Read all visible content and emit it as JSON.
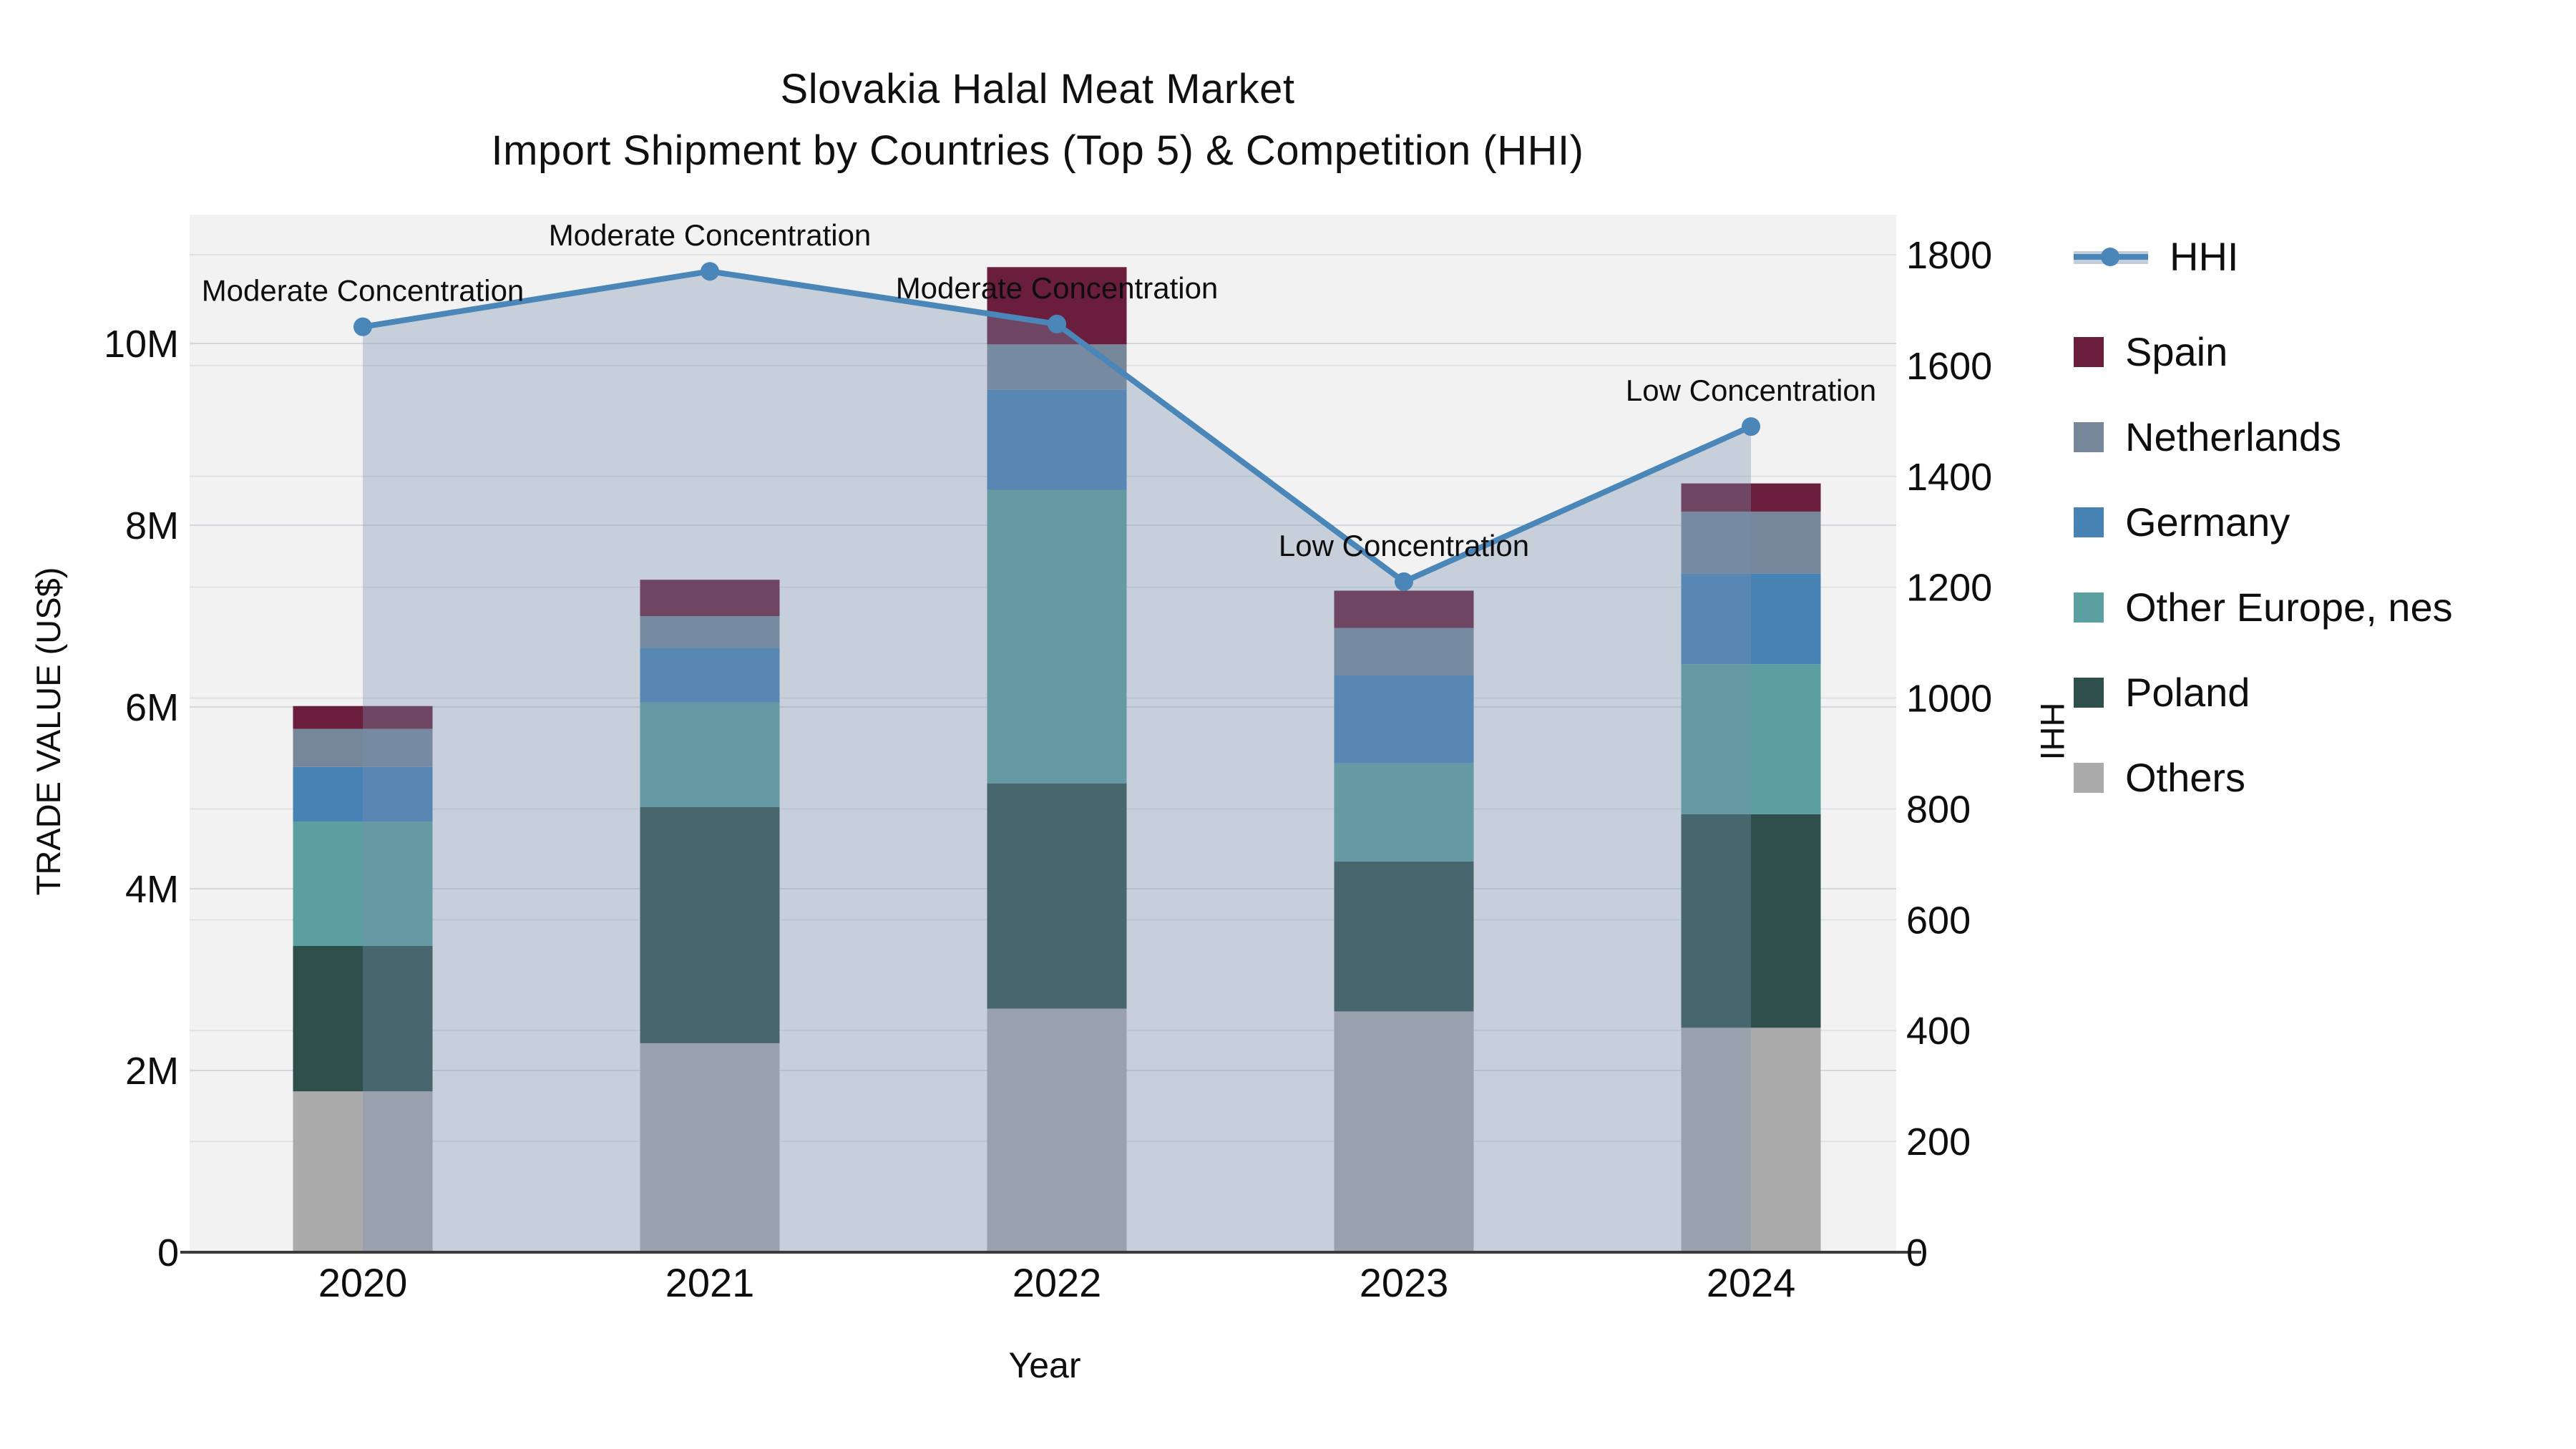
{
  "title": {
    "line1": "Slovakia Halal Meat Market",
    "line2": "Import Shipment by Countries (Top 5) & Competition (HHI)"
  },
  "axes": {
    "x": {
      "title": "Year"
    },
    "left": {
      "title": "TRADE VALUE (US$)",
      "ticks": [
        {
          "value": 0,
          "label": "0"
        },
        {
          "value": 2,
          "label": "2M"
        },
        {
          "value": 4,
          "label": "4M"
        },
        {
          "value": 6,
          "label": "6M"
        },
        {
          "value": 8,
          "label": "8M"
        },
        {
          "value": 10,
          "label": "10M"
        }
      ]
    },
    "right": {
      "title": "HHI",
      "ticks": [
        {
          "value": 0,
          "label": "0"
        },
        {
          "value": 200,
          "label": "200"
        },
        {
          "value": 400,
          "label": "400"
        },
        {
          "value": 600,
          "label": "600"
        },
        {
          "value": 800,
          "label": "800"
        },
        {
          "value": 1000,
          "label": "1000"
        },
        {
          "value": 1200,
          "label": "1200"
        },
        {
          "value": 1400,
          "label": "1400"
        },
        {
          "value": 1600,
          "label": "1600"
        },
        {
          "value": 1800,
          "label": "1800"
        }
      ]
    }
  },
  "chart_data": {
    "type": "bar",
    "subtype": "stacked-bars-with-line-overlay",
    "title": "Slovakia Halal Meat Market Import Shipment by Countries (Top 5) & Competition (HHI)",
    "xlabel": "Year",
    "ylabel_left": "TRADE VALUE (US$)",
    "ylabel_right": "HHI",
    "categories": [
      "2020",
      "2021",
      "2022",
      "2023",
      "2024"
    ],
    "unit": "US$ millions",
    "plot_bg": "#f2f2f2",
    "grid": true,
    "legend_position": "right",
    "y_left_range_musd": [
      0,
      11.4
    ],
    "y_right_range": [
      0,
      1800
    ],
    "series": [
      {
        "name": "Others",
        "color": "#ababab",
        "values_musd": [
          1.77,
          2.3,
          2.68,
          2.65,
          2.47
        ]
      },
      {
        "name": "Poland",
        "color": "#2f4f4c",
        "values_musd": [
          1.6,
          2.6,
          2.48,
          1.65,
          2.35
        ]
      },
      {
        "name": "Other Europe, nes",
        "color": "#5b9fa0",
        "values_musd": [
          1.37,
          1.15,
          3.23,
          1.08,
          1.65
        ]
      },
      {
        "name": "Germany",
        "color": "#4682b4",
        "values_musd": [
          0.6,
          0.6,
          1.1,
          0.97,
          1.0
        ]
      },
      {
        "name": "Netherlands",
        "color": "#76879a",
        "values_musd": [
          0.42,
          0.35,
          0.5,
          0.52,
          0.68
        ]
      },
      {
        "name": "Spain",
        "color": "#6b1d3c",
        "values_musd": [
          0.25,
          0.4,
          0.85,
          0.41,
          0.31
        ]
      }
    ],
    "totals_musd": [
      6.01,
      7.4,
      10.84,
      7.28,
      8.46
    ],
    "line": {
      "name": "HHI",
      "color": "#4a86b8",
      "area_fill": "rgba(120,145,175,0.35)",
      "values": [
        1670,
        1770,
        1675,
        1210,
        1490
      ]
    },
    "annotations": [
      "Moderate Concentration",
      "Moderate Concentration",
      "Moderate Concentration",
      "Low Concentration",
      "Low Concentration"
    ]
  },
  "legend": {
    "items": [
      {
        "name": "HHI",
        "type": "line",
        "color": "#4a86b8",
        "band": "rgba(120,145,175,0.45)"
      },
      {
        "name": "Spain",
        "type": "square",
        "color": "#6b1d3c"
      },
      {
        "name": "Netherlands",
        "type": "square",
        "color": "#76879a"
      },
      {
        "name": "Germany",
        "type": "square",
        "color": "#4682b4"
      },
      {
        "name": "Other Europe, nes",
        "type": "square",
        "color": "#5b9fa0"
      },
      {
        "name": "Poland",
        "type": "square",
        "color": "#2f4f4c"
      },
      {
        "name": "Others",
        "type": "square",
        "color": "#ababab"
      }
    ]
  }
}
